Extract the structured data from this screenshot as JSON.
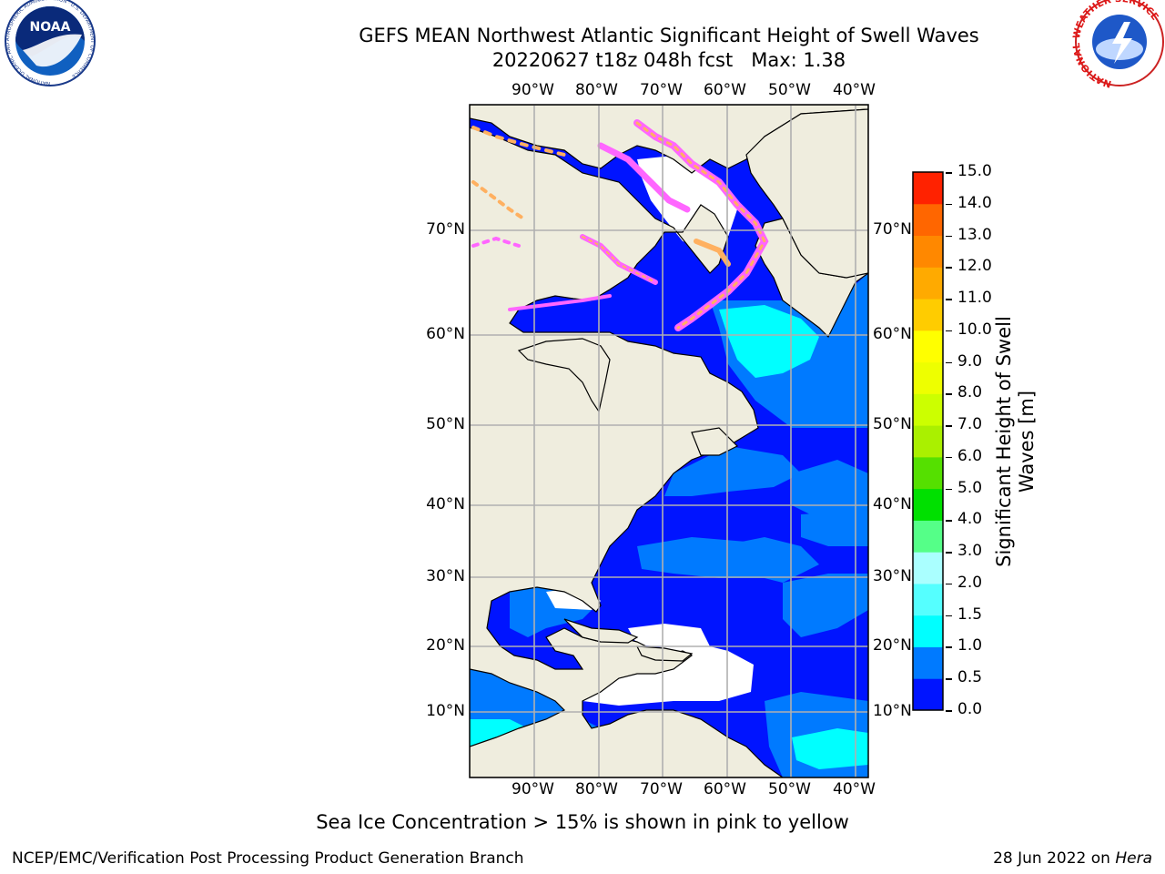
{
  "title": {
    "line1": "GEFS MEAN Northwest Atlantic Significant Height of Swell Waves",
    "line2": "20220627 t18z 048h fcst   Max: 1.38"
  },
  "map": {
    "lon_labels": [
      "90°W",
      "80°W",
      "70°W",
      "60°W",
      "50°W",
      "40°W"
    ],
    "lat_labels": [
      "70°N",
      "60°N",
      "50°N",
      "40°N",
      "30°N",
      "20°N",
      "10°N"
    ],
    "colors": {
      "land": "#efedde",
      "ocean_low": "#0014ff",
      "ocean_mid": "#007aff",
      "ocean_high": "#00ffff",
      "ice_pink": "#ff66ff",
      "ice_orange": "#ffb060",
      "no_data": "#ffffff",
      "grid": "#b0b0b0"
    }
  },
  "colorbar": {
    "label": "Significant Height of Swell Waves [m]",
    "ticks": [
      "15.0",
      "14.0",
      "13.0",
      "12.0",
      "11.0",
      "10.0",
      "9.0",
      "8.0",
      "7.0",
      "6.0",
      "5.0",
      "4.0",
      "3.0",
      "2.0",
      "1.5",
      "1.0",
      "0.5",
      "0.0"
    ],
    "colors": [
      "#0014ff",
      "#007aff",
      "#00ffff",
      "#55ffff",
      "#aaffff",
      "#55ff88",
      "#00e000",
      "#55e000",
      "#aaf000",
      "#ccff00",
      "#eeff00",
      "#ffff00",
      "#ffcc00",
      "#ffaa00",
      "#ff8800",
      "#ff6600",
      "#ff2200"
    ]
  },
  "footer": {
    "note": "Sea Ice Concentration > 15% is shown in pink to yellow",
    "credit_left": "NCEP/EMC/Verification Post Processing Product Generation Branch",
    "date": "28 Jun 2022 on ",
    "machine": "Hera"
  },
  "logos": {
    "noaa_text": "NOAA",
    "noaa_ring": "NATIONAL OCEANIC AND ATMOSPHERIC ADMINISTRATION · U.S. DEPARTMENT OF COMMERCE",
    "nws_ring": "NATIONAL WEATHER SERVICE"
  }
}
